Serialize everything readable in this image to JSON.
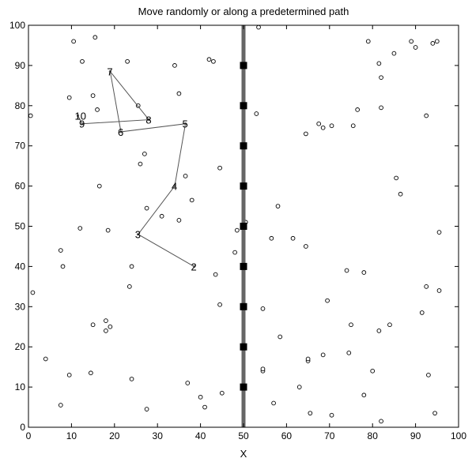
{
  "chart_data": {
    "type": "scatter",
    "title": "Move randomly or along a predetermined path",
    "xlabel": "X",
    "ylabel": "",
    "xlim": [
      0,
      100
    ],
    "ylim": [
      0,
      100
    ],
    "xticks": [
      "0",
      "10",
      "20",
      "30",
      "40",
      "50",
      "60",
      "70",
      "80",
      "90",
      "100"
    ],
    "yticks": [
      "0",
      "10",
      "20",
      "30",
      "40",
      "50",
      "60",
      "70",
      "80",
      "90",
      "100"
    ],
    "grid": false,
    "colors": {
      "axes": "#000000",
      "path": "#555555",
      "wall": "#666666",
      "marker": "#000000"
    },
    "points": [
      [
        0.5,
        77.5
      ],
      [
        1,
        33.5
      ],
      [
        4,
        17
      ],
      [
        7.5,
        5.5
      ],
      [
        7.5,
        44
      ],
      [
        8,
        40
      ],
      [
        9.5,
        82
      ],
      [
        9.5,
        13
      ],
      [
        10.5,
        96
      ],
      [
        12,
        49.5
      ],
      [
        12.5,
        91
      ],
      [
        14.5,
        13.5
      ],
      [
        15,
        25.5
      ],
      [
        15,
        82.5
      ],
      [
        15.5,
        97
      ],
      [
        16,
        79
      ],
      [
        16.5,
        60
      ],
      [
        18,
        26.5
      ],
      [
        18,
        24
      ],
      [
        18.5,
        49
      ],
      [
        19,
        25
      ],
      [
        23,
        91
      ],
      [
        23.5,
        35
      ],
      [
        24,
        40
      ],
      [
        24,
        12
      ],
      [
        25.5,
        80
      ],
      [
        26,
        65.5
      ],
      [
        27,
        68
      ],
      [
        27.5,
        54.5
      ],
      [
        27.5,
        4.5
      ],
      [
        31,
        52.5
      ],
      [
        34,
        90
      ],
      [
        35,
        83
      ],
      [
        35,
        51.5
      ],
      [
        36.5,
        62.5
      ],
      [
        37,
        11
      ],
      [
        38,
        56.5
      ],
      [
        40,
        7.5
      ],
      [
        41,
        5
      ],
      [
        42,
        91.5
      ],
      [
        43,
        91
      ],
      [
        43.5,
        38
      ],
      [
        44.5,
        64.5
      ],
      [
        44.5,
        30.5
      ],
      [
        45,
        8.5
      ],
      [
        48,
        43.5
      ],
      [
        48.5,
        49
      ],
      [
        50.5,
        51
      ],
      [
        53,
        78
      ],
      [
        53.5,
        99.5
      ],
      [
        54.5,
        29.5
      ],
      [
        54.5,
        14
      ],
      [
        54.5,
        14.5
      ],
      [
        56.5,
        47
      ],
      [
        57,
        6
      ],
      [
        58,
        55
      ],
      [
        58.5,
        22.5
      ],
      [
        61.5,
        47
      ],
      [
        63,
        10
      ],
      [
        64.5,
        73
      ],
      [
        64.5,
        45
      ],
      [
        65,
        16.5
      ],
      [
        65,
        17
      ],
      [
        65.5,
        3.5
      ],
      [
        67.5,
        75.5
      ],
      [
        68.5,
        74.5
      ],
      [
        68.5,
        18
      ],
      [
        69.5,
        31.5
      ],
      [
        70.5,
        3
      ],
      [
        70.5,
        75
      ],
      [
        74,
        39
      ],
      [
        74.5,
        18.5
      ],
      [
        75,
        25.5
      ],
      [
        75.5,
        75
      ],
      [
        76.5,
        79
      ],
      [
        78,
        38.5
      ],
      [
        78,
        8
      ],
      [
        79,
        96
      ],
      [
        80,
        14
      ],
      [
        81.5,
        90.5
      ],
      [
        81.5,
        24
      ],
      [
        82,
        87
      ],
      [
        82,
        79.5
      ],
      [
        82,
        1.5
      ],
      [
        84,
        25.5
      ],
      [
        85,
        93
      ],
      [
        85.5,
        62
      ],
      [
        86.5,
        58
      ],
      [
        89,
        96
      ],
      [
        90,
        94.5
      ],
      [
        91.5,
        28.5
      ],
      [
        92.5,
        35
      ],
      [
        92.5,
        77.5
      ],
      [
        93,
        13
      ],
      [
        94,
        95.5
      ],
      [
        94.5,
        3.5
      ],
      [
        95,
        96
      ],
      [
        95.5,
        34
      ],
      [
        95.5,
        48.5
      ]
    ],
    "path": {
      "labels": [
        "2",
        "3",
        "4",
        "5",
        "6",
        "7",
        "8",
        "9",
        "10"
      ],
      "x": [
        38.5,
        25.5,
        34,
        36.5,
        21.5,
        19,
        28,
        12.5,
        11.5
      ],
      "y": [
        40,
        48,
        60,
        75.5,
        73.5,
        88.5,
        76.5,
        75.5,
        77.5
      ]
    },
    "wall": {
      "x": 50,
      "y_range": [
        0,
        100
      ],
      "markers_y": [
        10,
        20,
        30,
        40,
        50,
        60,
        70,
        80,
        90
      ]
    }
  }
}
